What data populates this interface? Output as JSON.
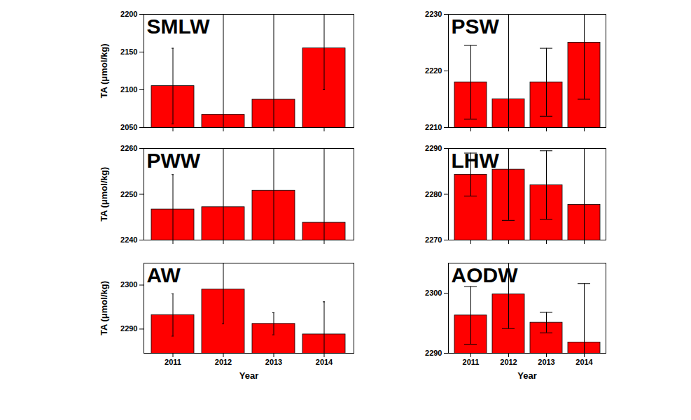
{
  "chart_data": [
    {
      "type": "bar",
      "title": "SMLW",
      "categories": [
        "2011",
        "2012",
        "2013",
        "2014"
      ],
      "values": [
        2105,
        2067,
        2087,
        2155
      ],
      "errors": [
        50,
        140,
        120,
        55
      ],
      "color": "#ff0000",
      "ylabel": "TA (μmol/kg)",
      "ylim": [
        2050,
        2200
      ],
      "yticks": [
        2050,
        2100,
        2150,
        2200
      ],
      "tick_labels": "y"
    },
    {
      "type": "bar",
      "title": "PSW",
      "categories": [
        "2011",
        "2012",
        "2013",
        "2014"
      ],
      "values": [
        2218,
        2215,
        2218,
        2225
      ],
      "errors": [
        6.5,
        20,
        6,
        10
      ],
      "color": "#ff0000",
      "ylim": [
        2210,
        2230
      ],
      "yticks": [
        2210,
        2220,
        2230
      ],
      "tick_labels": "y"
    },
    {
      "type": "bar",
      "title": "PWW",
      "categories": [
        "2011",
        "2012",
        "2013",
        "2014"
      ],
      "values": [
        2246.7,
        2247.2,
        2250.8,
        2243.8
      ],
      "errors": [
        7.6,
        15,
        12,
        20
      ],
      "color": "#ff0000",
      "ylabel": "TA (μmol/kg)",
      "ylim": [
        2240,
        2260
      ],
      "yticks": [
        2240,
        2250,
        2260
      ],
      "tick_labels": "y"
    },
    {
      "type": "bar",
      "title": "LHW",
      "categories": [
        "2011",
        "2012",
        "2013",
        "2014"
      ],
      "values": [
        2284.3,
        2285.4,
        2282.0,
        2277.7
      ],
      "errors": [
        4.7,
        11.1,
        7.5,
        14
      ],
      "color": "#ff0000",
      "ylim": [
        2270,
        2290
      ],
      "yticks": [
        2270,
        2280,
        2290
      ],
      "tick_labels": "y"
    },
    {
      "type": "bar",
      "title": "AW",
      "categories": [
        "2011",
        "2012",
        "2013",
        "2014"
      ],
      "values": [
        2293.2,
        2299.0,
        2291.2,
        2288.8
      ],
      "errors": [
        4.8,
        7.8,
        2.5,
        7.4
      ],
      "color": "#ff0000",
      "xlabel": "Year",
      "ylabel": "TA (μmol/kg)",
      "ylim": [
        2284.5,
        2305
      ],
      "yticks": [
        2290,
        2300
      ]
    },
    {
      "type": "bar",
      "title": "AODW",
      "categories": [
        "2011",
        "2012",
        "2013",
        "2014"
      ],
      "values": [
        2296.3,
        2299.8,
        2295.1,
        2291.8
      ],
      "errors": [
        4.8,
        5.7,
        1.7,
        9.8
      ],
      "color": "#ff0000",
      "xlabel": "Year",
      "ylim": [
        2290,
        2305
      ],
      "yticks": [
        2290,
        2300
      ]
    }
  ]
}
